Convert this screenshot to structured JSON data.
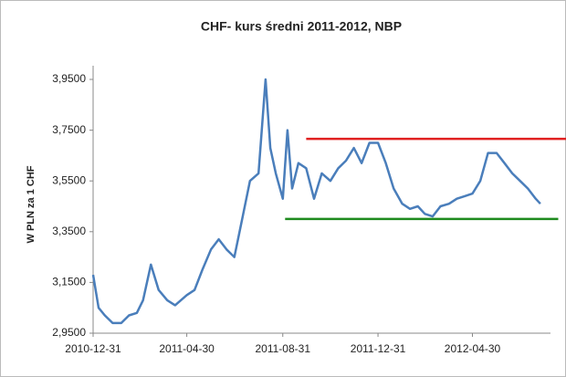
{
  "chart_data": {
    "type": "line",
    "title": "CHF- kurs średni  2011-2012, NBP",
    "y_label": "W PLN za 1 CHF",
    "x": [
      "2010-12-31",
      "2011-01-07",
      "2011-01-15",
      "2011-01-25",
      "2011-02-05",
      "2011-02-15",
      "2011-02-25",
      "2011-03-05",
      "2011-03-15",
      "2011-03-25",
      "2011-04-05",
      "2011-04-15",
      "2011-04-30",
      "2011-05-10",
      "2011-05-20",
      "2011-05-31",
      "2011-06-10",
      "2011-06-20",
      "2011-06-30",
      "2011-07-10",
      "2011-07-20",
      "2011-07-31",
      "2011-08-09",
      "2011-08-15",
      "2011-08-22",
      "2011-08-31",
      "2011-09-06",
      "2011-09-12",
      "2011-09-20",
      "2011-09-30",
      "2011-10-10",
      "2011-10-20",
      "2011-10-31",
      "2011-11-10",
      "2011-11-20",
      "2011-11-30",
      "2011-12-10",
      "2011-12-20",
      "2011-12-31",
      "2012-01-10",
      "2012-01-20",
      "2012-01-31",
      "2012-02-10",
      "2012-02-20",
      "2012-02-29",
      "2012-03-10",
      "2012-03-20",
      "2012-03-31",
      "2012-04-10",
      "2012-04-20",
      "2012-04-30",
      "2012-05-10",
      "2012-05-20",
      "2012-05-31",
      "2012-06-10",
      "2012-06-20",
      "2012-06-30",
      "2012-07-10",
      "2012-07-20",
      "2012-07-26"
    ],
    "series": [
      {
        "color": "#4a7ebb",
        "values": [
          3.18,
          3.05,
          3.02,
          2.99,
          2.99,
          3.02,
          3.03,
          3.08,
          3.22,
          3.12,
          3.08,
          3.06,
          3.1,
          3.12,
          3.2,
          3.28,
          3.32,
          3.28,
          3.25,
          3.4,
          3.55,
          3.58,
          3.95,
          3.68,
          3.58,
          3.48,
          3.75,
          3.52,
          3.62,
          3.6,
          3.48,
          3.58,
          3.55,
          3.6,
          3.63,
          3.68,
          3.62,
          3.7,
          3.7,
          3.62,
          3.52,
          3.46,
          3.44,
          3.45,
          3.42,
          3.41,
          3.45,
          3.46,
          3.48,
          3.49,
          3.5,
          3.55,
          3.66,
          3.66,
          3.62,
          3.58,
          3.55,
          3.52,
          3.48,
          3.46
        ]
      }
    ],
    "annotation_lines": [
      {
        "color": "#e02020",
        "x": [
          "2011-09-30",
          "2012-08-28"
        ],
        "values": [
          3.716,
          3.716
        ]
      },
      {
        "color": "#1e8a1e",
        "x": [
          "2011-09-03",
          "2012-08-18"
        ],
        "values": [
          3.4,
          3.4
        ]
      }
    ],
    "xlim": [
      "2010-12-31",
      "2012-08-08"
    ],
    "xticks": [
      "2010-12-31",
      "2011-04-30",
      "2011-08-31",
      "2011-12-31",
      "2012-04-30"
    ],
    "ylim": [
      2.95,
      3.95
    ],
    "yticks": [
      {
        "value": 2.95,
        "label": "2,9500"
      },
      {
        "value": 3.15,
        "label": "3,1500"
      },
      {
        "value": 3.35,
        "label": "3,3500"
      },
      {
        "value": 3.55,
        "label": "3,5500"
      },
      {
        "value": 3.75,
        "label": "3,7500"
      },
      {
        "value": 3.95,
        "label": "3,9500"
      }
    ],
    "grid": false
  }
}
